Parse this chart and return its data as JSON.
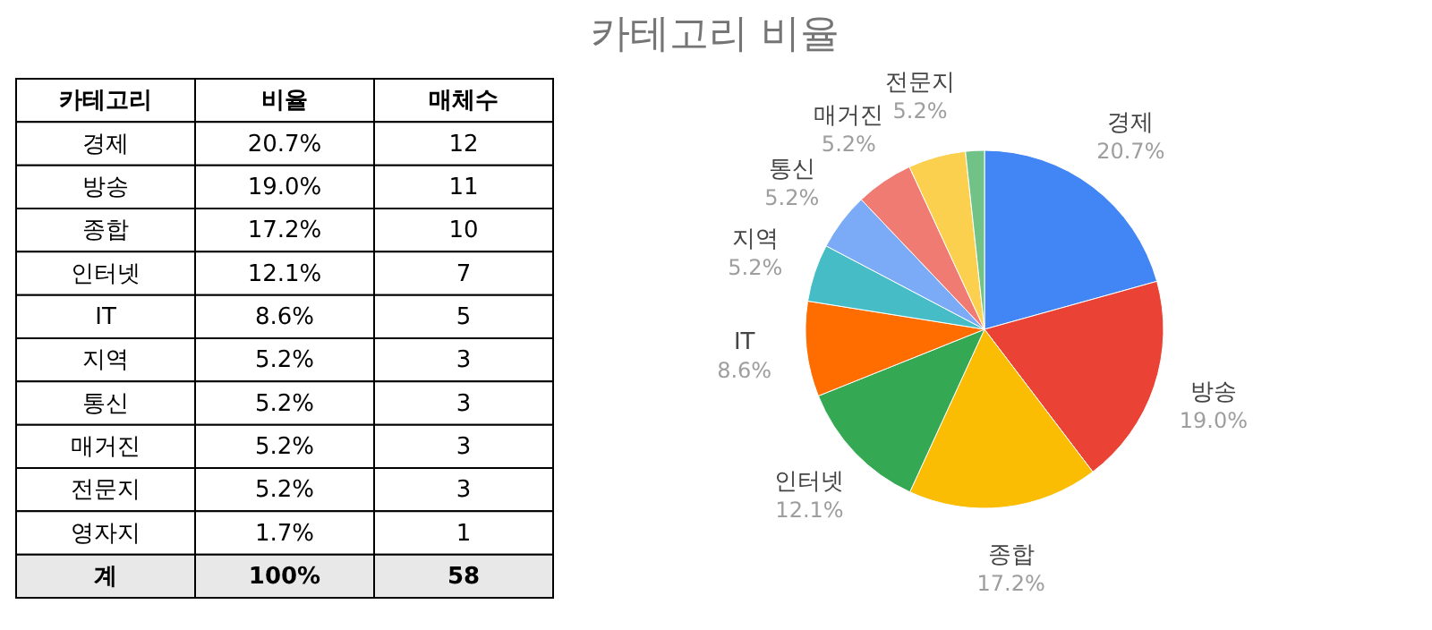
{
  "chart_data": [
    {
      "type": "other",
      "annotations": [
        "카테고리",
        "비율",
        "매체수",
        "경제",
        "20.7%",
        "12",
        "방송",
        "19.0%",
        "11",
        "종합",
        "17.2%",
        "10",
        "인터넷",
        "12.1%",
        "7",
        "IT",
        "8.6%",
        "5",
        "지역",
        "5.2%",
        "3",
        "통신",
        "5.2%",
        "3",
        "매거진",
        "5.2%",
        "3",
        "전문지",
        "5.2%",
        "3",
        "영자지",
        "1.7%",
        "1",
        "계",
        "100%",
        "58"
      ]
    },
    {
      "type": "pie",
      "title": "카테고리 비율",
      "categories": [
        "경제",
        "방송",
        "종합",
        "인터넷",
        "IT",
        "지역",
        "통신",
        "매거진",
        "전문지",
        null
      ],
      "values": [
        20.7,
        19.0,
        17.2,
        12.1,
        8.6,
        5.2,
        5.2,
        5.2,
        5.2,
        1.7
      ],
      "colors": [
        "#4285f4",
        "#ea4335",
        "#fbbc04",
        "#34a853",
        "#ff6d01",
        "#46bdc6",
        "#7baaf7",
        "#f07b72",
        "#fcd04f",
        "#71c287"
      ],
      "value_labels": [
        "20.7%",
        "19.0%",
        "17.2%",
        "12.1%",
        "8.6%",
        "5.2%",
        "5.2%",
        "5.2%",
        "5.2%",
        null
      ],
      "legend": false
    }
  ]
}
